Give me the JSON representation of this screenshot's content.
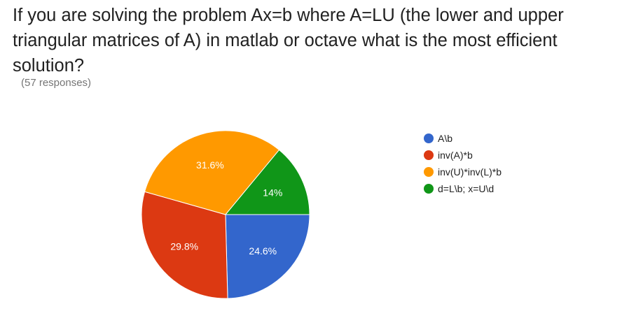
{
  "question": {
    "title": "If you are solving the problem Ax=b where A=LU (the lower and upper triangular matrices of A) in matlab or octave what is the most efficient solution?",
    "responses": "(57 responses)"
  },
  "chart_data": {
    "type": "pie",
    "labels": [
      "A\\b",
      "inv(A)*b",
      "inv(U)*inv(L)*b",
      "d=L\\b; x=U\\d"
    ],
    "values": [
      24.6,
      29.8,
      31.6,
      14.0
    ],
    "value_labels": [
      "24.6%",
      "29.8%",
      "31.6%",
      "14%"
    ],
    "colors": [
      "#3366cc",
      "#dc3912",
      "#ff9900",
      "#109618"
    ],
    "legend_position": "right"
  }
}
